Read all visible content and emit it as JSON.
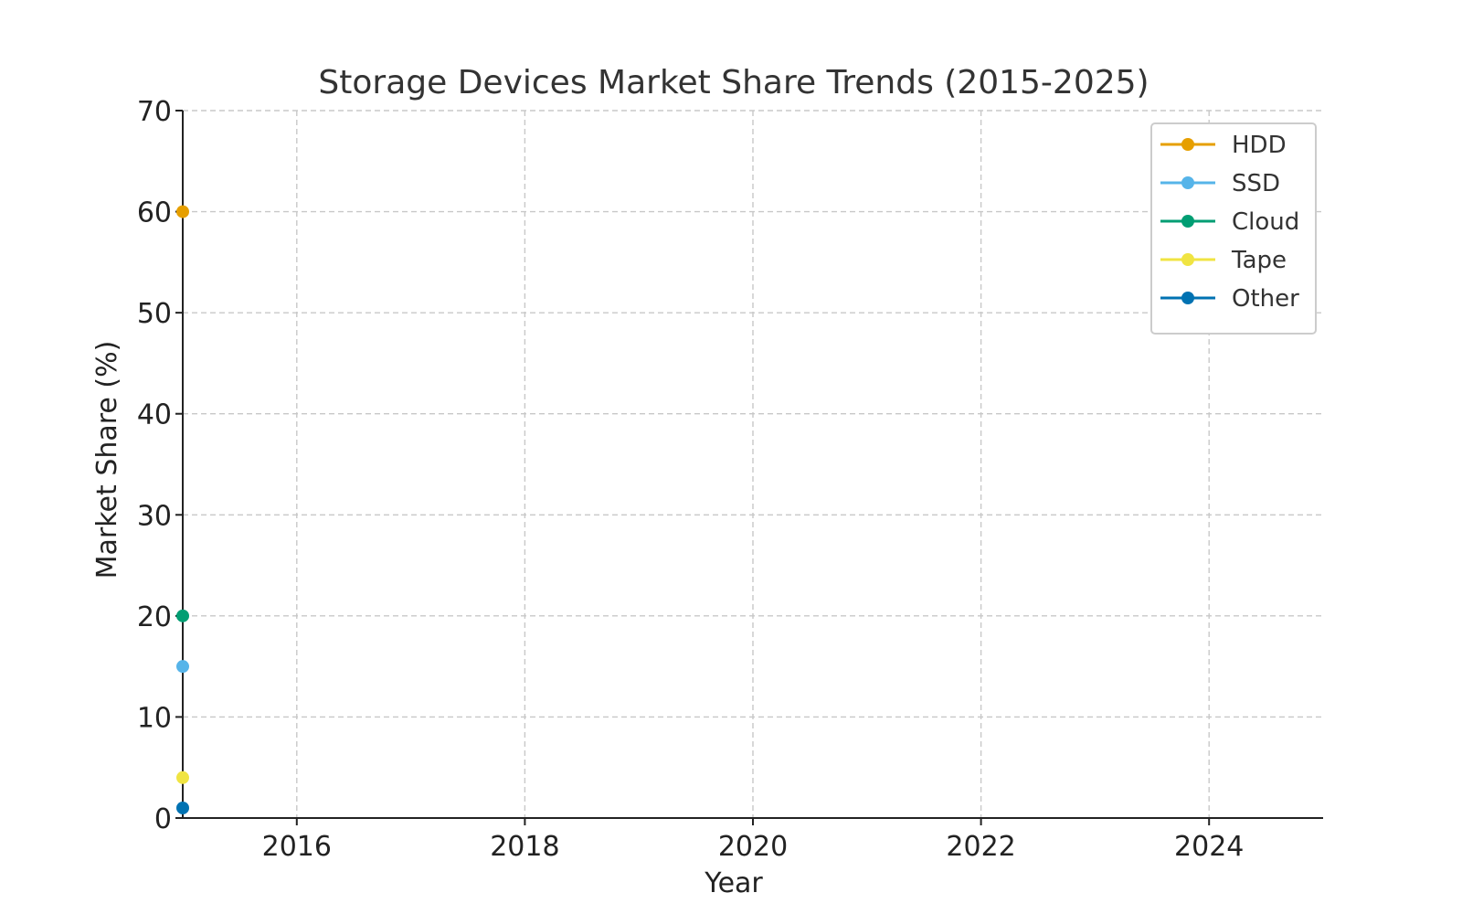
{
  "chart_data": {
    "type": "line",
    "title": "Storage Devices Market Share Trends (2015-2025)",
    "xlabel": "Year",
    "ylabel": "Market Share (%)",
    "xlim": [
      2015,
      2025
    ],
    "ylim": [
      0,
      70
    ],
    "x_ticks": [
      2016,
      2018,
      2020,
      2022,
      2024
    ],
    "y_ticks": [
      0,
      10,
      20,
      30,
      40,
      50,
      60,
      70
    ],
    "grid": true,
    "legend_position": "top-right",
    "x": [
      2015
    ],
    "series": [
      {
        "name": "HDD",
        "color": "#E69F00",
        "values": [
          60
        ]
      },
      {
        "name": "SSD",
        "color": "#56B4E9",
        "values": [
          15
        ]
      },
      {
        "name": "Cloud",
        "color": "#009E73",
        "values": [
          20
        ]
      },
      {
        "name": "Tape",
        "color": "#F0E442",
        "values": [
          4
        ]
      },
      {
        "name": "Other",
        "color": "#0072B2",
        "values": [
          1
        ]
      }
    ]
  }
}
